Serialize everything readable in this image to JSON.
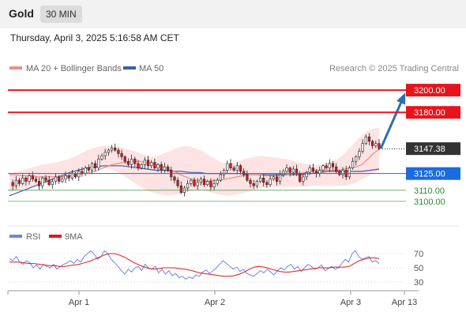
{
  "header": {
    "asset": "Gold",
    "timeframe": "30 MIN",
    "datetime": "Thursday, April 3, 2025 5:16:58 AM CET"
  },
  "colors": {
    "ma20": "#f28b82",
    "bollinger_fill": "#fde3e3",
    "ma50": "#3b5fa8",
    "resistance": "#e8141c",
    "support": "#2e8b2e",
    "pivot": "#1a6be0",
    "bull": "#ffffff",
    "bear": "#e8141c",
    "rsi": "#6a86e8",
    "rsi_ma": "#e8141c",
    "arrow": "#2f6cb5",
    "last_price_bg": "#333333"
  },
  "chart_data": [
    {
      "type": "line",
      "title": "",
      "source": "Research © 2025 Trading Central",
      "legend": [
        {
          "label": "MA 20 + Bollinger Bands",
          "color": "#f28b82"
        },
        {
          "label": "MA 50",
          "color": "#3b5fa8"
        }
      ],
      "x_ticks": [
        "Apr 1",
        "Apr 2",
        "Apr 3",
        "Apr 13"
      ],
      "ylim": [
        3085,
        3210
      ],
      "last_price": {
        "value": 3147.38,
        "label": "3147.38"
      },
      "levels": [
        {
          "label": "3200.00",
          "value": 3200.0,
          "kind": "resistance"
        },
        {
          "label": "3180.00",
          "value": 3180.0,
          "kind": "resistance"
        },
        {
          "label": "3125.00",
          "value": 3125.0,
          "kind": "pivot"
        },
        {
          "label": "3110.00",
          "value": 3110.0,
          "kind": "support"
        },
        {
          "label": "3100.00",
          "value": 3100.0,
          "kind": "support"
        }
      ],
      "closes": [
        3117,
        3114,
        3119,
        3116,
        3121,
        3118,
        3123,
        3120,
        3118,
        3114,
        3121,
        3119,
        3115,
        3118,
        3122,
        3118,
        3120,
        3123,
        3121,
        3125,
        3122,
        3127,
        3125,
        3130,
        3128,
        3134,
        3130,
        3138,
        3141,
        3144,
        3146,
        3148,
        3146,
        3143,
        3140,
        3136,
        3133,
        3138,
        3134,
        3130,
        3133,
        3137,
        3132,
        3135,
        3130,
        3133,
        3128,
        3131,
        3128,
        3122,
        3119,
        3114,
        3108,
        3112,
        3116,
        3119,
        3114,
        3117,
        3120,
        3115,
        3118,
        3113,
        3116,
        3119,
        3124,
        3128,
        3134,
        3130,
        3128,
        3132,
        3127,
        3124,
        3119,
        3116,
        3114,
        3118,
        3121,
        3117,
        3115,
        3120,
        3122,
        3118,
        3124,
        3127,
        3130,
        3126,
        3129,
        3125,
        3118,
        3122,
        3126,
        3130,
        3127,
        3125,
        3128,
        3132,
        3130,
        3134,
        3131,
        3127,
        3124,
        3128,
        3122,
        3130,
        3136,
        3140,
        3145,
        3152,
        3158,
        3154,
        3150,
        3152,
        3147.38
      ],
      "ma20": [
        3124,
        3124,
        3123,
        3123,
        3123,
        3122,
        3122,
        3122,
        3122,
        3122,
        3123,
        3123,
        3124,
        3125,
        3126,
        3127,
        3129,
        3131,
        3133,
        3134,
        3135,
        3136,
        3136,
        3136,
        3135,
        3134,
        3133,
        3131,
        3129,
        3127,
        3124,
        3122,
        3120,
        3119,
        3118,
        3118,
        3119,
        3119,
        3120,
        3121,
        3122,
        3123,
        3124,
        3124,
        3124,
        3123,
        3123,
        3123,
        3123,
        3124,
        3125,
        3125,
        3126,
        3127,
        3128,
        3128,
        3128,
        3128,
        3128,
        3129,
        3130,
        3131,
        3133,
        3138,
        3143,
        3147
      ],
      "ma50": [
        3105,
        3108,
        3111,
        3114,
        3117,
        3120,
        3123,
        3126,
        3128,
        3130,
        3131,
        3132,
        3132,
        3132,
        3131,
        3130,
        3129,
        3128,
        3128,
        3127,
        3127,
        3126,
        3126,
        3125,
        3125,
        3125,
        3125,
        3125,
        3124,
        3124,
        3124,
        3124,
        3124,
        3124,
        3124,
        3125,
        3126,
        3127,
        3127,
        3127,
        3127,
        3127,
        3128,
        3129
      ],
      "bb_upper": [
        3125,
        3127,
        3129,
        3131,
        3133,
        3134,
        3136,
        3138,
        3141,
        3145,
        3148,
        3150,
        3150,
        3149,
        3147,
        3145,
        3142,
        3140,
        3142,
        3145,
        3148,
        3150,
        3148,
        3145,
        3140,
        3136,
        3133,
        3135,
        3138,
        3140,
        3141,
        3140,
        3139,
        3138,
        3136,
        3134,
        3133,
        3133,
        3135,
        3138,
        3144,
        3152,
        3160,
        3165,
        3166
      ],
      "bb_lower": [
        3108,
        3110,
        3112,
        3114,
        3116,
        3118,
        3120,
        3123,
        3126,
        3129,
        3130,
        3130,
        3129,
        3126,
        3121,
        3116,
        3111,
        3108,
        3106,
        3105,
        3106,
        3108,
        3110,
        3110,
        3108,
        3106,
        3105,
        3106,
        3108,
        3110,
        3112,
        3113,
        3113,
        3113,
        3113,
        3113,
        3114,
        3114,
        3114,
        3114,
        3114,
        3116,
        3120,
        3124,
        3128
      ]
    },
    {
      "type": "line",
      "title": "",
      "legend": [
        {
          "label": "RSI",
          "color": "#6a86e8"
        },
        {
          "label": "9MA",
          "color": "#e8141c"
        }
      ],
      "y_ticks": [
        "70",
        "50",
        "30"
      ],
      "ylim": [
        20,
        80
      ],
      "rsi": [
        63,
        60,
        66,
        58,
        55,
        60,
        57,
        50,
        54,
        48,
        55,
        52,
        50,
        55,
        48,
        52,
        55,
        57,
        60,
        56,
        62,
        58,
        66,
        70,
        74,
        69,
        62,
        66,
        74,
        70,
        62,
        57,
        52,
        46,
        41,
        48,
        44,
        50,
        52,
        46,
        55,
        50,
        48,
        52,
        43,
        48,
        41,
        46,
        39,
        42,
        36,
        38,
        34,
        37,
        35,
        40,
        38,
        44,
        47,
        42,
        46,
        50,
        55,
        60,
        56,
        52,
        48,
        51,
        45,
        48,
        42,
        40,
        38,
        42,
        46,
        43,
        48,
        44,
        40,
        46,
        50,
        47,
        52,
        55,
        48,
        52,
        45,
        50,
        55,
        52,
        48,
        50,
        54,
        46,
        49,
        52,
        48,
        50,
        56,
        62,
        58,
        70,
        74,
        66,
        62,
        64,
        66,
        58,
        60,
        56
      ],
      "rsi_ma": [
        58,
        58,
        58,
        57,
        56,
        56,
        55,
        54,
        53,
        53,
        52,
        52,
        53,
        54,
        55,
        57,
        59,
        62,
        65,
        68,
        70,
        70,
        68,
        65,
        61,
        57,
        54,
        51,
        49,
        48,
        49,
        50,
        50,
        50,
        49,
        48,
        47,
        45,
        43,
        42,
        41,
        40,
        39,
        38,
        38,
        39,
        41,
        44,
        48,
        51,
        52,
        51,
        49,
        47,
        45,
        44,
        44,
        45,
        46,
        47,
        48,
        49,
        50,
        50,
        50,
        51,
        51,
        51,
        52,
        56,
        60,
        62,
        64,
        64,
        63
      ]
    }
  ]
}
